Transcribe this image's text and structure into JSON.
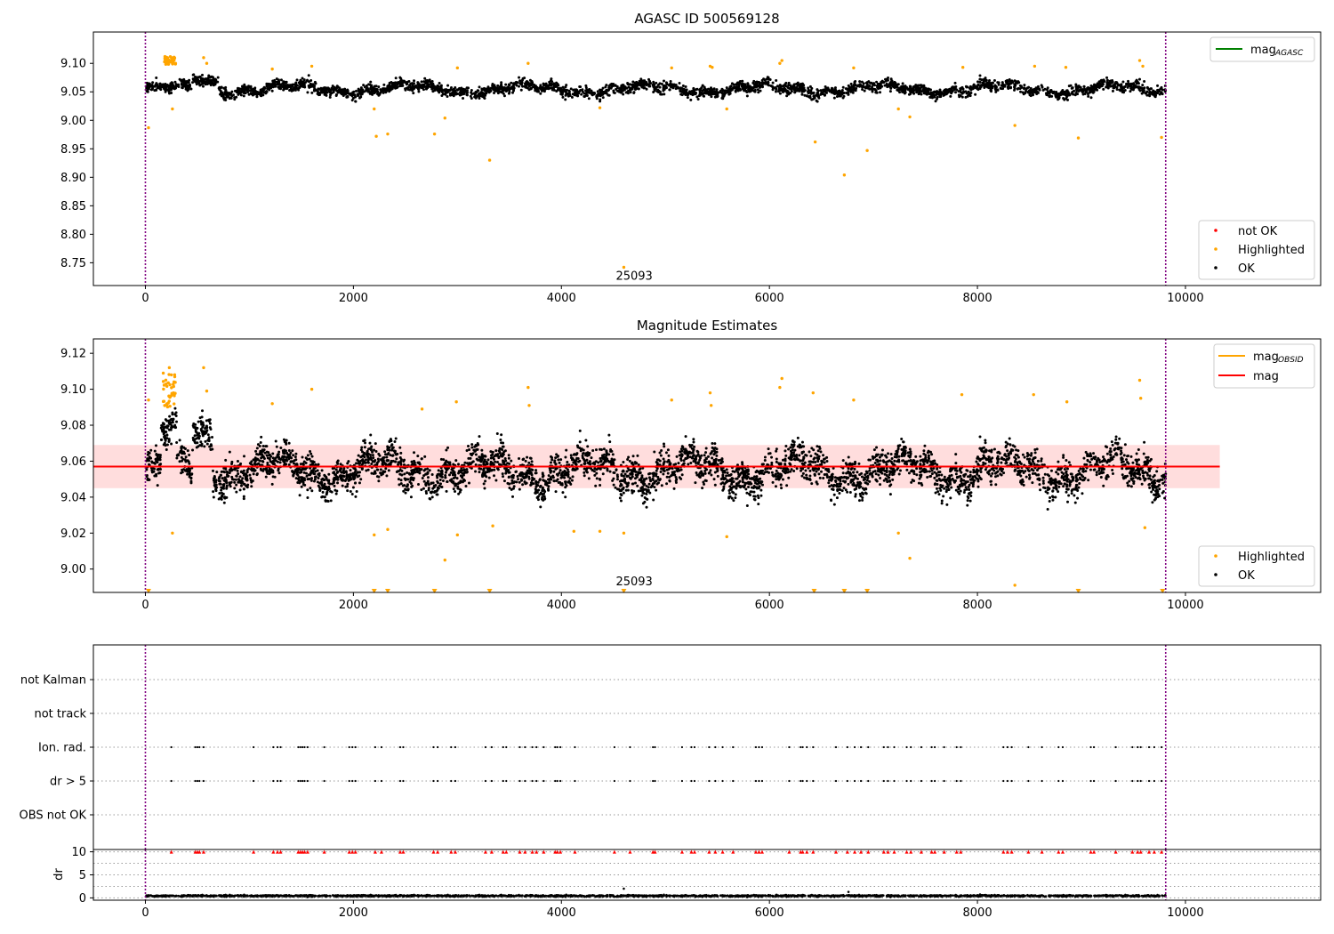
{
  "figure": {
    "colors": {
      "ok": "#000000",
      "highlighted": "#ffa500",
      "not_ok": "#ff0000",
      "mag_line": "#ff0000",
      "mag_band": "#ffd4d4",
      "mag_agasc_line": "#008000",
      "mag_obsid_line": "#ffa500",
      "obs_boundary": "#800080"
    }
  },
  "chart_data": [
    {
      "type": "scatter",
      "title": "AGASC ID 500569128",
      "xlim": [
        -500,
        11300
      ],
      "ylim": [
        8.71,
        9.155
      ],
      "x_ticks": [
        0,
        2000,
        4000,
        6000,
        8000,
        10000
      ],
      "x_tick_labels": [
        "0",
        "2000",
        "4000",
        "6000",
        "8000",
        "10000"
      ],
      "y_ticks": [
        8.75,
        8.8,
        8.85,
        8.9,
        8.95,
        9.0,
        9.05,
        9.1
      ],
      "y_tick_labels": [
        "8.75",
        "8.80",
        "8.85",
        "8.90",
        "8.95",
        "9.00",
        "9.05",
        "9.10"
      ],
      "obs_boundaries": [
        0,
        9810
      ],
      "obsid_annotation": {
        "x": 4700,
        "y": 8.72,
        "text": "25093"
      },
      "series": [
        {
          "name": "OK",
          "color": "#000000",
          "x_range": [
            10,
            9810
          ],
          "mean": 9.055,
          "spread": 0.012,
          "count": 3200
        },
        {
          "name": "Highlighted",
          "color": "#ffa500",
          "x": [
            30,
            200,
            230,
            250,
            260,
            270,
            290,
            560,
            590,
            1220,
            1600,
            2200,
            2220,
            2330,
            2780,
            2880,
            3000,
            3310,
            3680,
            4370,
            4600,
            5060,
            5430,
            5450,
            5590,
            6100,
            6120,
            6440,
            6720,
            6810,
            6940,
            7240,
            7350,
            7860,
            8360,
            8550,
            8850,
            8970,
            9560,
            9590,
            9770
          ],
          "y": [
            8.987,
            9.1,
            9.105,
            9.11,
            9.02,
            9.108,
            9.1,
            9.11,
            9.1,
            9.09,
            9.095,
            9.02,
            8.972,
            8.976,
            8.976,
            9.004,
            9.092,
            8.93,
            9.1,
            9.022,
            8.742,
            9.092,
            9.095,
            9.093,
            9.02,
            9.1,
            9.105,
            8.962,
            8.904,
            9.092,
            8.947,
            9.02,
            9.006,
            9.093,
            8.991,
            9.095,
            9.093,
            8.969,
            9.105,
            9.095,
            8.97
          ]
        },
        {
          "name": "not OK",
          "color": "#ff0000",
          "x": [],
          "y": []
        }
      ],
      "lines": [
        {
          "name": "mag",
          "sub": "AGASC",
          "color": "#008000"
        }
      ],
      "legend_top": [
        {
          "label": "mag",
          "sub": "AGASC",
          "marker": "line",
          "color": "#008000"
        }
      ],
      "legend_bottom": [
        {
          "label": "not OK",
          "marker": "dot",
          "color": "#ff0000"
        },
        {
          "label": "Highlighted",
          "marker": "dot",
          "color": "#ffa500"
        },
        {
          "label": "OK",
          "marker": "dot",
          "color": "#000000"
        }
      ]
    },
    {
      "type": "scatter",
      "title": "Magnitude Estimates",
      "xlim": [
        -500,
        11300
      ],
      "ylim": [
        8.987,
        9.128
      ],
      "x_ticks": [
        0,
        2000,
        4000,
        6000,
        8000,
        10000
      ],
      "x_tick_labels": [
        "0",
        "2000",
        "4000",
        "6000",
        "8000",
        "10000"
      ],
      "y_ticks": [
        9.0,
        9.02,
        9.04,
        9.06,
        9.08,
        9.1,
        9.12
      ],
      "y_tick_labels": [
        "9.00",
        "9.02",
        "9.04",
        "9.06",
        "9.08",
        "9.10",
        "9.12"
      ],
      "obs_boundaries": [
        0,
        9810
      ],
      "obsid_annotation": {
        "x": 4700,
        "y": 8.991,
        "text": "25093"
      },
      "mag_line": {
        "y": 9.057,
        "x_range": [
          -500,
          10330
        ],
        "band": [
          9.045,
          9.069
        ]
      },
      "series": [
        {
          "name": "OK",
          "color": "#000000",
          "x_range": [
            10,
            9810
          ],
          "mean": 9.055,
          "spread": 0.011,
          "count": 4200
        },
        {
          "name": "Highlighted",
          "color": "#ffa500",
          "x": [
            30,
            200,
            230,
            250,
            260,
            270,
            560,
            590,
            1220,
            1600,
            2200,
            2330,
            2660,
            2880,
            2990,
            3000,
            3340,
            3680,
            3690,
            4120,
            4370,
            4600,
            5060,
            5430,
            5440,
            5590,
            6100,
            6120,
            6420,
            6810,
            7240,
            7350,
            7850,
            8360,
            8540,
            8860,
            9560,
            9570,
            9610
          ],
          "y": [
            9.094,
            9.103,
            9.112,
            9.108,
            9.02,
            9.098,
            9.112,
            9.099,
            9.092,
            9.1,
            9.019,
            9.022,
            9.089,
            9.005,
            9.093,
            9.019,
            9.024,
            9.101,
            9.091,
            9.021,
            9.021,
            9.02,
            9.094,
            9.098,
            9.091,
            9.018,
            9.101,
            9.106,
            9.098,
            9.094,
            9.02,
            9.006,
            9.097,
            8.991,
            9.097,
            9.093,
            9.105,
            9.095,
            9.023
          ]
        },
        {
          "name": "Highlighted-offscale",
          "color": "#ffa500",
          "x": [
            30,
            2200,
            2330,
            2780,
            3310,
            4600,
            6430,
            6720,
            6940,
            8970,
            9780
          ],
          "y": [
            8.988,
            8.988,
            8.988,
            8.988,
            8.988,
            8.988,
            8.988,
            8.988,
            8.988,
            8.988,
            8.988
          ]
        }
      ],
      "legend_top": [
        {
          "label": "mag",
          "sub": "OBSID",
          "marker": "line",
          "color": "#ffa500"
        },
        {
          "label": "mag",
          "sub": "",
          "marker": "line",
          "color": "#ff0000"
        }
      ],
      "legend_bottom": [
        {
          "label": "Highlighted",
          "marker": "dot",
          "color": "#ffa500"
        },
        {
          "label": "OK",
          "marker": "dot",
          "color": "#000000"
        }
      ]
    },
    {
      "type": "scatter",
      "title": "",
      "xlim": [
        -500,
        11300
      ],
      "categories": [
        "not Kalman",
        "not track",
        "Ion. rad.",
        "dr > 5",
        "OBS not OK"
      ],
      "flag_events_x": [
        250,
        480,
        500,
        520,
        560,
        1040,
        1230,
        1270,
        1300,
        1470,
        1490,
        1510,
        1530,
        1560,
        1720,
        1960,
        1990,
        2020,
        2210,
        2270,
        2450,
        2480,
        2770,
        2810,
        2940,
        2980,
        3270,
        3330,
        3440,
        3470,
        3600,
        3650,
        3720,
        3760,
        3830,
        3940,
        3960,
        3990,
        4130,
        4510,
        4660,
        4880,
        4900,
        5160,
        5250,
        5280,
        5420,
        5480,
        5550,
        5650,
        5870,
        5900,
        5930,
        6190,
        6300,
        6320,
        6360,
        6420,
        6640,
        6750,
        6820,
        6880,
        6950,
        7100,
        7140,
        7200,
        7320,
        7360,
        7460,
        7560,
        7590,
        7680,
        7800,
        7840,
        8250,
        8290,
        8330,
        8490,
        8620,
        8780,
        8820,
        9090,
        9120,
        9330,
        9490,
        9540,
        9570,
        9650,
        9700,
        9770
      ],
      "obs_boundaries": [
        0,
        9810
      ]
    },
    {
      "type": "scatter",
      "title": "",
      "ylabel": "dr",
      "xlim": [
        -500,
        11300
      ],
      "ylim": [
        -0.5,
        10.5
      ],
      "x_ticks": [
        0,
        2000,
        4000,
        6000,
        8000,
        10000
      ],
      "x_tick_labels": [
        "0",
        "2000",
        "4000",
        "6000",
        "8000",
        "10000"
      ],
      "y_ticks": [
        0,
        5,
        10
      ],
      "y_tick_labels": [
        "0",
        "5",
        "10"
      ],
      "obs_boundaries": [
        0,
        9810
      ],
      "series": [
        {
          "name": "dr",
          "color": "#000000",
          "x_range": [
            10,
            9810
          ],
          "mean": 0.45,
          "spread": 0.2,
          "count": 2500
        },
        {
          "name": "dr-offscale",
          "color": "#ff0000",
          "marker": "triangle-up"
        }
      ],
      "outliers": [
        {
          "x": 4600,
          "y": 2.0
        },
        {
          "x": 6760,
          "y": 1.3
        }
      ]
    }
  ]
}
